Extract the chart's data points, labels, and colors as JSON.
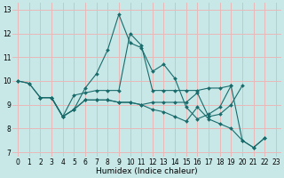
{
  "xlabel": "Humidex (Indice chaleur)",
  "xlim": [
    -0.5,
    23.5
  ],
  "ylim": [
    6.8,
    13.3
  ],
  "yticks": [
    7,
    8,
    9,
    10,
    11,
    12,
    13
  ],
  "xticks": [
    0,
    1,
    2,
    3,
    4,
    5,
    6,
    7,
    8,
    9,
    10,
    11,
    12,
    13,
    14,
    15,
    16,
    17,
    18,
    19,
    20,
    21,
    22,
    23
  ],
  "bg_color": "#c8e8e8",
  "grid_color": "#e8b8b8",
  "line_color": "#1a6b6b",
  "series": [
    {
      "x": [
        0,
        1,
        2,
        3,
        4,
        5,
        6,
        7,
        8,
        9,
        10,
        11,
        12,
        13,
        14,
        15,
        16,
        17,
        18,
        19,
        20,
        21,
        22
      ],
      "y": [
        10.0,
        9.9,
        9.3,
        9.3,
        8.5,
        8.8,
        9.7,
        10.3,
        11.3,
        12.8,
        11.6,
        11.4,
        10.4,
        10.7,
        10.1,
        8.9,
        8.4,
        8.6,
        8.9,
        9.8,
        7.5,
        7.2,
        7.6
      ]
    },
    {
      "x": [
        0,
        1,
        2,
        3,
        4,
        5,
        6,
        7,
        8,
        9,
        10,
        11,
        12,
        13,
        14,
        15,
        16,
        17,
        18,
        19
      ],
      "y": [
        10.0,
        9.9,
        9.3,
        9.3,
        8.5,
        9.4,
        9.5,
        9.6,
        9.6,
        9.6,
        12.0,
        11.5,
        9.6,
        9.6,
        9.6,
        9.6,
        9.6,
        9.7,
        9.7,
        9.8
      ]
    },
    {
      "x": [
        2,
        3,
        4,
        5,
        6,
        7,
        8,
        9,
        10,
        11,
        12,
        13,
        14,
        15,
        16,
        17,
        18,
        19,
        20,
        21,
        22
      ],
      "y": [
        9.3,
        9.3,
        8.5,
        8.8,
        9.2,
        9.2,
        9.2,
        9.1,
        9.1,
        9.0,
        8.8,
        8.7,
        8.5,
        8.3,
        8.9,
        8.4,
        8.2,
        8.0,
        7.5,
        7.2,
        7.6
      ]
    },
    {
      "x": [
        2,
        3,
        4,
        5,
        6,
        7,
        8,
        9,
        10,
        11,
        12,
        13,
        14,
        15,
        16,
        17,
        18,
        19,
        20
      ],
      "y": [
        9.3,
        9.3,
        8.5,
        8.8,
        9.2,
        9.2,
        9.2,
        9.1,
        9.1,
        9.0,
        9.1,
        9.1,
        9.1,
        9.1,
        9.5,
        8.5,
        8.6,
        9.0,
        9.8
      ]
    }
  ]
}
